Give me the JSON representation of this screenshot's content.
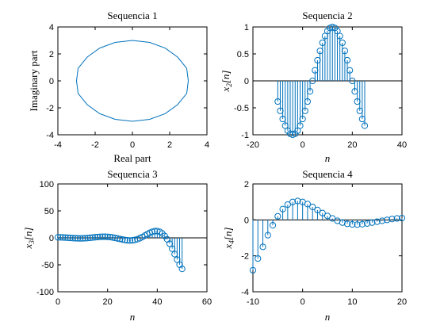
{
  "figure": {
    "background": "#ffffff",
    "series_color": "#0072BD"
  },
  "chart_data": [
    {
      "type": "line",
      "title": "Sequencia 1",
      "xlabel": "Real part",
      "ylabel": "Imaginary part",
      "xlim": [
        -4,
        4
      ],
      "ylim": [
        -4,
        4
      ],
      "xticks": [
        -4,
        -2,
        0,
        2,
        4
      ],
      "yticks": [
        -4,
        -2,
        0,
        2,
        4
      ],
      "grid": false,
      "series": [
        {
          "x": [
            3.0,
            2.913,
            2.427,
            1.763,
            0.927,
            0.0,
            -0.927,
            -1.763,
            -2.427,
            -2.913,
            -3.0,
            -2.913,
            -2.427,
            -1.763,
            -0.927,
            0.0,
            0.927,
            1.763,
            2.427,
            2.913,
            3.0
          ],
          "y": [
            0.0,
            0.927,
            1.763,
            2.427,
            2.853,
            3.0,
            2.853,
            2.427,
            1.763,
            0.927,
            0.0,
            -0.927,
            -1.763,
            -2.427,
            -2.853,
            -3.0,
            -2.853,
            -2.427,
            -1.763,
            -0.927,
            0.0
          ]
        }
      ]
    },
    {
      "type": "stem",
      "title": "Sequencia 2",
      "xlabel": "n",
      "ylabel": "x_2[n]",
      "xlim": [
        -20,
        40
      ],
      "ylim": [
        -1,
        1
      ],
      "xticks": [
        -20,
        0,
        20,
        40
      ],
      "yticks": [
        -1,
        -0.5,
        0,
        0.5,
        1
      ],
      "grid": false,
      "series": [
        {
          "x": [
            -10,
            -9,
            -8,
            -7,
            -6,
            -5,
            -4,
            -3,
            -2,
            -1,
            0,
            1,
            2,
            3,
            4,
            5,
            6,
            7,
            8,
            9,
            10,
            11,
            12,
            13,
            14,
            15,
            16,
            17,
            18,
            19,
            20,
            21,
            22,
            23,
            24,
            25
          ],
          "y": [
            -0.383,
            -0.556,
            -0.707,
            -0.831,
            -0.924,
            -0.981,
            -1.0,
            -0.981,
            -0.924,
            -0.831,
            -0.707,
            -0.556,
            -0.383,
            -0.195,
            0.0,
            0.195,
            0.383,
            0.556,
            0.707,
            0.831,
            0.924,
            0.981,
            1.0,
            0.981,
            0.924,
            0.831,
            0.707,
            0.556,
            0.383,
            0.195,
            0.0,
            -0.195,
            -0.383,
            -0.556,
            -0.707,
            -0.831
          ]
        }
      ]
    },
    {
      "type": "stem",
      "title": "Sequencia 3",
      "xlabel": "n",
      "ylabel": "x_3[n]",
      "xlim": [
        0,
        60
      ],
      "ylim": [
        -100,
        100
      ],
      "xticks": [
        0,
        20,
        40,
        60
      ],
      "yticks": [
        -100,
        -50,
        0,
        50,
        100
      ],
      "grid": false,
      "series": [
        {
          "x": [
            0,
            1,
            2,
            3,
            4,
            5,
            6,
            7,
            8,
            9,
            10,
            11,
            12,
            13,
            14,
            15,
            16,
            17,
            18,
            19,
            20,
            21,
            22,
            23,
            24,
            25,
            26,
            27,
            28,
            29,
            30,
            31,
            32,
            33,
            34,
            35,
            36,
            37,
            38,
            39,
            40,
            41,
            42,
            43,
            44,
            45,
            46,
            47,
            48,
            49,
            50
          ],
          "y": [
            1.0,
            0.94,
            0.77,
            0.52,
            0.22,
            -0.12,
            -0.44,
            -0.72,
            -0.91,
            -0.99,
            -0.92,
            -0.71,
            -0.36,
            0.1,
            0.62,
            1.13,
            1.59,
            1.93,
            2.12,
            2.11,
            1.89,
            1.44,
            0.78,
            -0.08,
            -1.07,
            -2.12,
            -3.13,
            -4.01,
            -4.62,
            -4.87,
            -4.65,
            -3.9,
            -2.58,
            -0.73,
            1.58,
            4.18,
            6.86,
            9.34,
            11.32,
            12.49,
            12.55,
            11.21,
            8.27,
            3.6,
            -2.81,
            -10.82,
            -20.11,
            -30.18,
            -40.35,
            -49.81,
            -57.58
          ]
        }
      ]
    },
    {
      "type": "stem",
      "title": "Sequencia 4",
      "xlabel": "n",
      "ylabel": "x_4[n]",
      "xlim": [
        -10,
        20
      ],
      "ylim": [
        -4,
        2
      ],
      "xticks": [
        -10,
        0,
        10,
        20
      ],
      "yticks": [
        -4,
        -2,
        0,
        2
      ],
      "grid": false,
      "series": [
        {
          "x": [
            -10,
            -9,
            -8,
            -7,
            -6,
            -5,
            -4,
            -3,
            -2,
            -1,
            0,
            1,
            2,
            3,
            4,
            5,
            6,
            7,
            8,
            9,
            10,
            11,
            12,
            13,
            14,
            15,
            16,
            17,
            18,
            19,
            20
          ],
          "y": [
            -2.8,
            -2.15,
            -1.5,
            -0.85,
            -0.3,
            0.2,
            0.6,
            0.85,
            1.0,
            1.05,
            1.0,
            0.88,
            0.72,
            0.55,
            0.38,
            0.22,
            0.08,
            -0.05,
            -0.15,
            -0.22,
            -0.25,
            -0.26,
            -0.24,
            -0.2,
            -0.15,
            -0.1,
            -0.05,
            0.0,
            0.05,
            0.08,
            0.1
          ]
        }
      ]
    }
  ]
}
